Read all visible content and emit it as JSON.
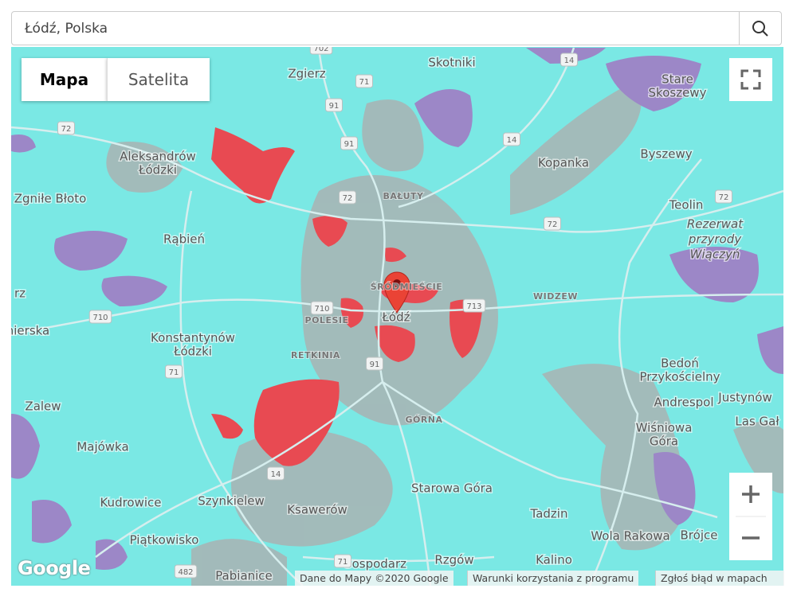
{
  "search": {
    "query": "Łódź, Polska"
  },
  "map_types": [
    "Mapa",
    "Satelita"
  ],
  "city": "Łódź",
  "places": [
    {
      "lines": [
        "Zgierz"
      ]
    },
    {
      "lines": [
        "Skotniki"
      ]
    },
    {
      "lines": [
        "Stare",
        "Skoszewy"
      ]
    },
    {
      "lines": [
        "Aleksandrów",
        "Łódzki"
      ]
    },
    {
      "lines": [
        "Kopanka"
      ]
    },
    {
      "lines": [
        "Byszewy"
      ]
    },
    {
      "lines": [
        "Zgniłe Błoto"
      ]
    },
    {
      "lines": [
        "Teolin"
      ]
    },
    {
      "lines": [
        "Rąbień"
      ]
    },
    {
      "lines": [
        "Konstantynów",
        "Łódzki"
      ]
    },
    {
      "lines": [
        "Bedoń",
        "Przykościelny"
      ]
    },
    {
      "lines": [
        "Andrespol"
      ]
    },
    {
      "lines": [
        "Justynów"
      ]
    },
    {
      "lines": [
        "Las Gał"
      ]
    },
    {
      "lines": [
        "Zalew"
      ]
    },
    {
      "lines": [
        "Wiśniowa",
        "Góra"
      ]
    },
    {
      "lines": [
        "Majówka"
      ]
    },
    {
      "lines": [
        "Kudrowice"
      ]
    },
    {
      "lines": [
        "Szynkielew"
      ]
    },
    {
      "lines": [
        "Ksawerów"
      ]
    },
    {
      "lines": [
        "Starowa Góra"
      ]
    },
    {
      "lines": [
        "Tadzin"
      ]
    },
    {
      "lines": [
        "Piątkowisko"
      ]
    },
    {
      "lines": [
        "Kalino"
      ]
    },
    {
      "lines": [
        "Wola Rakowa"
      ]
    },
    {
      "lines": [
        "Brójce"
      ]
    },
    {
      "lines": [
        "Gospodarz"
      ]
    },
    {
      "lines": [
        "Rzgów"
      ]
    },
    {
      "lines": [
        "Pabianice"
      ]
    },
    {
      "lines": [
        "nierska"
      ]
    },
    {
      "lines": [
        "rz"
      ]
    }
  ],
  "reserve": [
    "Rezerwat",
    "przyrody",
    "Wiączyń"
  ],
  "districts": [
    "BAŁUTY",
    "ŚRÓDMIEŚCIE",
    "WIDZEW",
    "POLESIE",
    "RETKINIA",
    "GÓRNA"
  ],
  "roads": [
    "702",
    "71",
    "91",
    "14",
    "72",
    "91",
    "14",
    "72",
    "72",
    "72",
    "710",
    "710",
    "713",
    "91",
    "71",
    "14",
    "71",
    "482"
  ],
  "logo": "Google",
  "attribution": [
    "Dane do Mapy ©2020 Google",
    "Warunki korzystania z programu",
    "Zgłoś błąd w mapach"
  ]
}
